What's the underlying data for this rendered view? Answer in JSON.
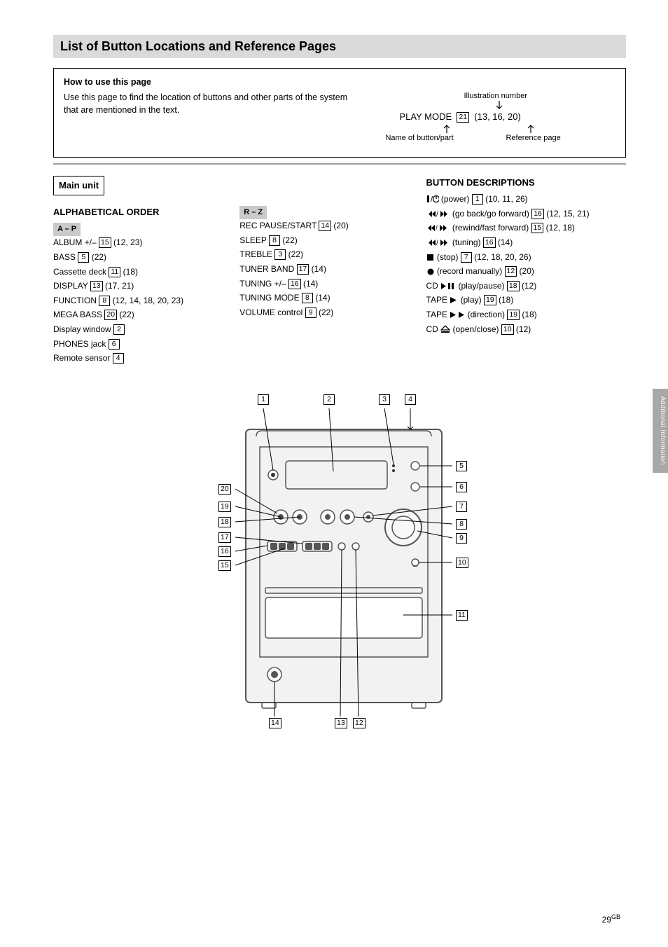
{
  "title": "List of Button Locations and Reference Pages",
  "intro": {
    "heading": "How to use this page",
    "body": "Use this page to find the location of buttons and other parts of the system that are mentioned in the text.",
    "illustration_label_top": "Illustration number",
    "example_left": "PLAY MODE",
    "example_right": "(13, 16, 20)",
    "example_ref": "21",
    "illustration_label_bottom_left": "Name of button/part",
    "illustration_label_bottom_right": "Reference page"
  },
  "main_unit": {
    "title": "Main unit",
    "alpha": {
      "heading": "ALPHABETICAL ORDER",
      "a_p": {
        "tag": "A – P",
        "items": [
          {
            "label": "ALBUM +/–",
            "ref": "15",
            "pages": "(12, 23)"
          },
          {
            "label": "BASS",
            "ref": "5",
            "pages": "(22)"
          },
          {
            "label": "Cassette deck",
            "ref": "11",
            "pages": "(18)"
          },
          {
            "label": "DISPLAY",
            "ref": "13",
            "pages": "(17, 21)"
          },
          {
            "label": "FUNCTION",
            "ref": "8",
            "pages": "(12, 14, 18, 20, 23)"
          },
          {
            "label": "MEGA BASS",
            "ref": "20",
            "pages": "(22)"
          },
          {
            "label": "Display window",
            "ref": "2",
            "pages": ""
          },
          {
            "label": "PHONES jack",
            "ref": "6",
            "pages": ""
          },
          {
            "label": "Remote sensor",
            "ref": "4",
            "pages": ""
          }
        ]
      },
      "r_z": {
        "tag": "R – Z",
        "items": [
          {
            "label": "REC PAUSE/START",
            "ref": "14",
            "pages": "(20)"
          },
          {
            "label": "SLEEP",
            "ref": "8",
            "pages": "(22)"
          },
          {
            "label": "TREBLE",
            "ref": "3",
            "pages": "(22)"
          },
          {
            "label": "TUNER BAND",
            "ref": "17",
            "pages": "(14)"
          },
          {
            "label": "TUNING +/–",
            "ref": "16",
            "pages": "(14)"
          },
          {
            "label": "TUNING MODE",
            "ref": "8",
            "pages": "(14)"
          },
          {
            "label": "VOLUME control",
            "ref": "9",
            "pages": "(22)"
          }
        ]
      }
    },
    "buttons": {
      "title": "BUTTON DESCRIPTIONS",
      "items": [
        {
          "icon": "power",
          "label": "(power)",
          "ref": "1",
          "pages": "(10, 11, 26)"
        },
        {
          "icon": "skipscan",
          "label": "(go back/go forward)",
          "ref": "16",
          "pages": "(12, 15, 21)"
        },
        {
          "icon": "rewff",
          "label": "(rewind/fast forward)",
          "ref": "15",
          "pages": "(12, 18)"
        },
        {
          "icon": "prevnext",
          "label": "(tuning)",
          "ref": "16",
          "pages": "(14)"
        },
        {
          "icon": "stop",
          "label": "(stop)",
          "ref": "7",
          "pages": "(12, 18, 20, 26)"
        },
        {
          "icon": "rec",
          "label": "(record manually)",
          "ref": "12",
          "pages": "(20)"
        },
        {
          "icon": "cdplay",
          "prefix": "CD",
          "label": "(play/pause)",
          "ref": "18",
          "pages": "(12)"
        },
        {
          "icon": "play",
          "prefix": "TAPE",
          "label": "(play)",
          "ref": "19",
          "pages": "(18)"
        },
        {
          "icon": "direction",
          "prefix": "TAPE",
          "label": "(direction)",
          "ref": "19",
          "pages": "(18)"
        },
        {
          "icon": "eject",
          "prefix": "CD",
          "label": "(open/close)",
          "ref": "10",
          "pages": "(12)"
        }
      ]
    }
  },
  "side_tab": "Additional Information",
  "page_number": "29",
  "page_lang": "GB",
  "callouts_top": [
    "1",
    "2",
    "3",
    "4"
  ],
  "callouts_left": [
    "20",
    "19",
    "18",
    "17",
    "16",
    "15"
  ],
  "callouts_right": [
    "5",
    "6",
    "7",
    "8",
    "9",
    "10",
    "11"
  ],
  "callouts_bottom": [
    "14",
    "13",
    "12"
  ]
}
